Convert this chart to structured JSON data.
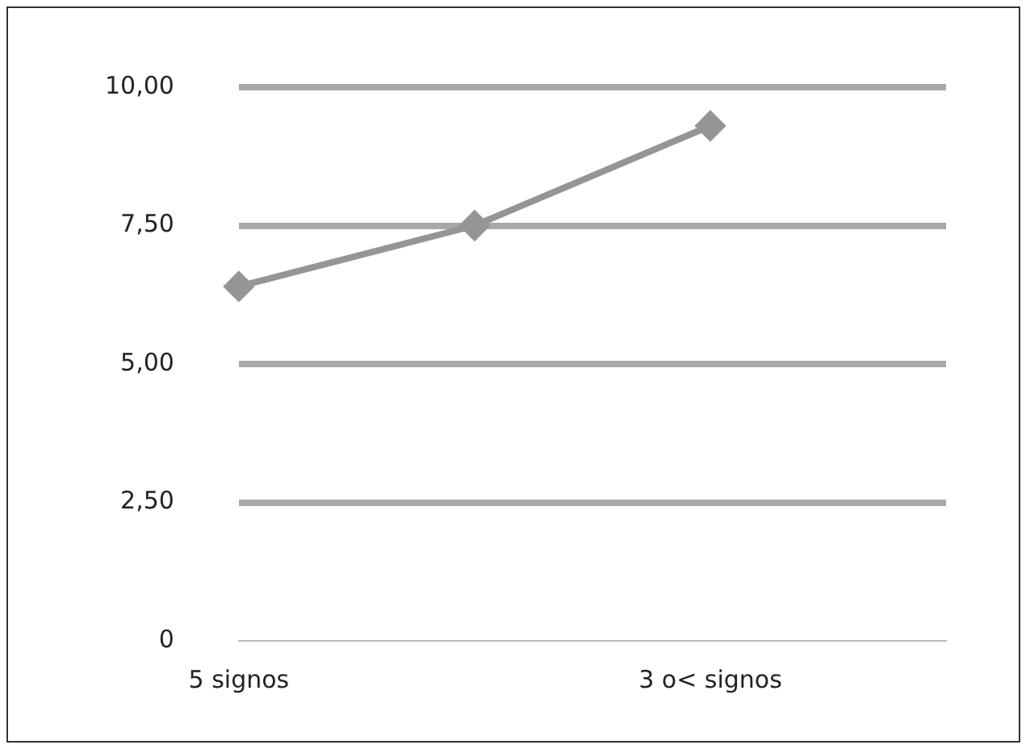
{
  "chart_data": {
    "type": "line",
    "categories": [
      "5 signos",
      null,
      "3 o< signos",
      null
    ],
    "series": [
      {
        "color": "#959595",
        "values": [
          6.4,
          7.5,
          9.3,
          null
        ]
      }
    ],
    "ylim": [
      0,
      10
    ],
    "yticks": [
      0,
      {
        "value": 2.5,
        "label": "2,50"
      },
      {
        "value": 5,
        "label": "5,00"
      },
      {
        "value": 7.5,
        "label": "7,50"
      },
      {
        "value": 10,
        "label": "10,00"
      }
    ],
    "grid": "y",
    "marker": "diamond",
    "line_style": "solid",
    "legend": false
  }
}
